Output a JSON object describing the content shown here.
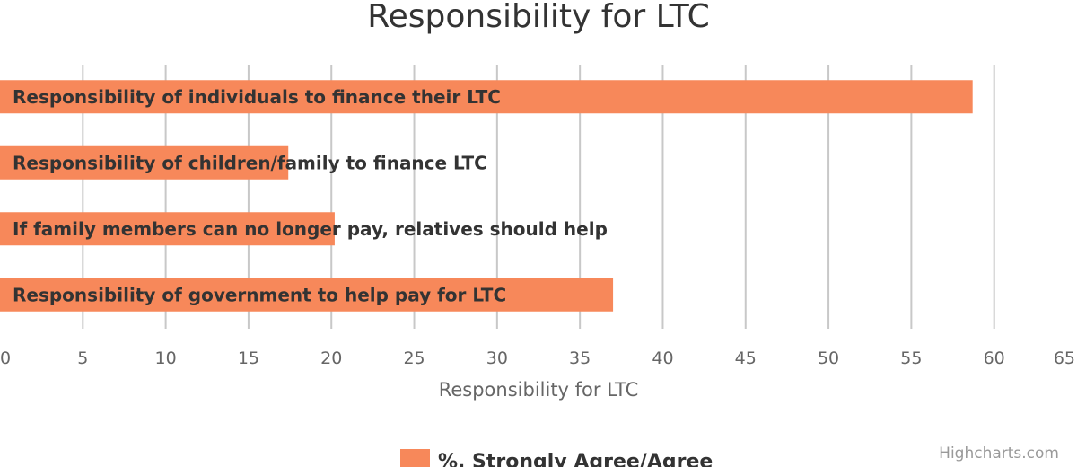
{
  "chart_data": {
    "type": "bar",
    "orientation": "horizontal",
    "title": "Responsibility for LTC",
    "xlabel": "Responsibility for LTC",
    "xlim": [
      0,
      65
    ],
    "x_ticks": [
      0,
      5,
      10,
      15,
      20,
      25,
      30,
      35,
      40,
      45,
      50,
      55,
      60,
      65
    ],
    "grid": true,
    "categories": [
      "Responsibility of individuals to finance their LTC",
      "Responsibility of children/family to finance LTC",
      "If family members can no longer pay, relatives should help",
      "Responsibility of government to help pay for LTC"
    ],
    "series": [
      {
        "name": "%. Strongly Agree/Agree",
        "color": "#f7885a",
        "values": [
          58.7,
          17.4,
          20.2,
          37.0
        ]
      }
    ],
    "legend": "bottom-center"
  },
  "credits": "Highcharts.com"
}
